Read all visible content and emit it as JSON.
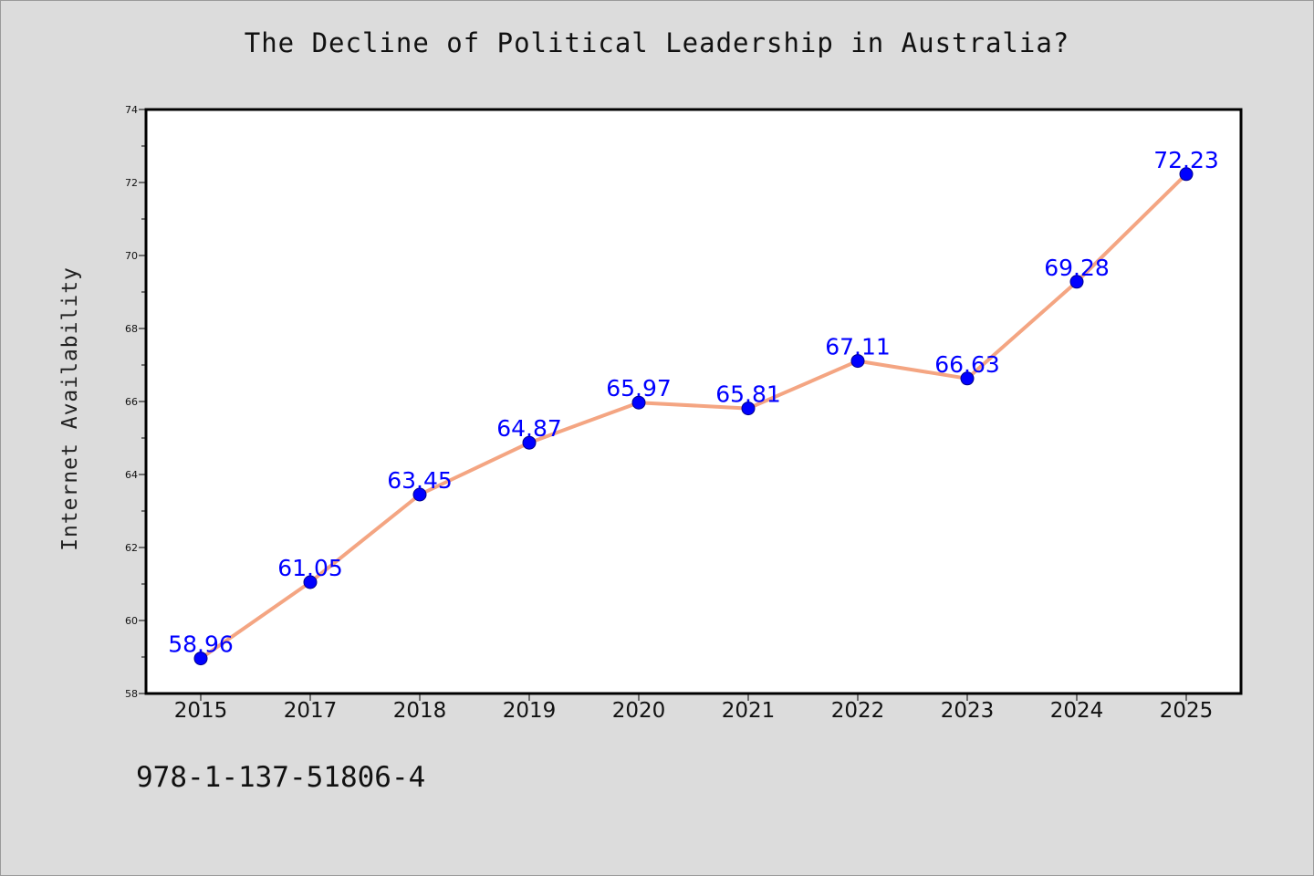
{
  "page": {
    "title": "The Decline of Political Leadership in Australia?",
    "footer_id": "978-1-137-51806-4"
  },
  "colors": {
    "background": "#dcdcdc",
    "plot_background": "#ffffff",
    "line": "#f4a582",
    "marker": "#0000ff",
    "data_label": "#0000ff"
  },
  "chart_data": {
    "type": "line",
    "title": "The Decline of Political Leadership in Australia?",
    "xlabel": "",
    "ylabel": "Internet Availability",
    "categories": [
      "2015",
      "2017",
      "2018",
      "2019",
      "2020",
      "2021",
      "2022",
      "2023",
      "2024",
      "2025"
    ],
    "series": [
      {
        "values": [
          58.96,
          61.05,
          63.45,
          64.87,
          65.97,
          65.81,
          67.11,
          66.63,
          69.28,
          72.23
        ],
        "labels": [
          "58.96",
          "61.05",
          "63.45",
          "64.87",
          "65.97",
          "65.81",
          "67.11",
          "66.63",
          "69.28",
          "72.23"
        ]
      }
    ],
    "ylim": [
      58,
      74
    ],
    "yticks": [
      58,
      60,
      62,
      64,
      66,
      68,
      70,
      72,
      74
    ],
    "grid": false,
    "legend": "none"
  }
}
